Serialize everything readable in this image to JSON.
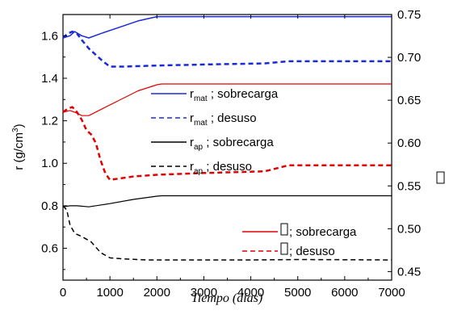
{
  "chart_data": {
    "type": "line",
    "xlabel": "Tiempo (días)",
    "ylabel_left": {
      "main": "r (g/cm",
      "sup": "3",
      "close": ")"
    },
    "ylabel_right": "",
    "xlim": [
      0,
      7000
    ],
    "ylim_left": [
      0.45,
      1.7
    ],
    "ylim_right": [
      0.44,
      0.75
    ],
    "x_ticks": [
      0,
      1000,
      2000,
      3000,
      4000,
      5000,
      6000,
      7000
    ],
    "y_ticks_left": [
      "0.6",
      "0.8",
      "1.0",
      "1.2",
      "1.4",
      "1.6"
    ],
    "y_ticks_left_values": [
      0.6,
      0.8,
      1.0,
      1.2,
      1.4,
      1.6
    ],
    "y_ticks_right": [
      "0.45",
      "0.50",
      "0.55",
      "0.60",
      "0.65",
      "0.70",
      "0.75"
    ],
    "y_ticks_right_values": [
      0.45,
      0.5,
      0.55,
      0.6,
      0.65,
      0.7,
      0.75
    ],
    "grid": false,
    "series": [
      {
        "name": "r mat ; sobrecarga",
        "axis": "left",
        "color": "#1a2bd6",
        "dash": "solid",
        "width": 1.5,
        "x": [
          0,
          150,
          250,
          400,
          550,
          800,
          1200,
          1600,
          2000,
          2100,
          3000,
          4000,
          5000,
          6000,
          7000
        ],
        "y": [
          1.59,
          1.6,
          1.62,
          1.6,
          1.59,
          1.61,
          1.64,
          1.67,
          1.69,
          1.69,
          1.69,
          1.69,
          1.69,
          1.69,
          1.69
        ]
      },
      {
        "name": "r mat ; desuso",
        "axis": "left",
        "color": "#1a2bd6",
        "dash": "dashed",
        "width": 2.5,
        "x": [
          0,
          100,
          200,
          300,
          400,
          550,
          700,
          850,
          1000,
          1300,
          2000,
          3000,
          4300,
          4800,
          6000,
          7000
        ],
        "y": [
          1.59,
          1.61,
          1.62,
          1.61,
          1.58,
          1.54,
          1.51,
          1.48,
          1.455,
          1.455,
          1.46,
          1.465,
          1.47,
          1.48,
          1.48,
          1.48
        ]
      },
      {
        "name": "r ap ; sobrecarga",
        "axis": "left",
        "color": "#000000",
        "dash": "solid",
        "width": 1.2,
        "x": [
          0,
          150,
          300,
          550,
          1000,
          1500,
          2000,
          2100,
          3000,
          4000,
          5000,
          6000,
          7000
        ],
        "y": [
          0.795,
          0.8,
          0.8,
          0.795,
          0.81,
          0.83,
          0.845,
          0.847,
          0.847,
          0.847,
          0.847,
          0.847,
          0.847
        ]
      },
      {
        "name": "r ap ; desuso",
        "axis": "left",
        "color": "#000000",
        "dash": "dashed",
        "width": 1.5,
        "x": [
          0,
          80,
          150,
          250,
          400,
          600,
          800,
          1000,
          1300,
          1800,
          2500,
          4000,
          5000,
          6000,
          7000
        ],
        "y": [
          0.8,
          0.78,
          0.71,
          0.67,
          0.655,
          0.63,
          0.58,
          0.555,
          0.55,
          0.545,
          0.545,
          0.545,
          0.547,
          0.546,
          0.545
        ]
      },
      {
        "name": "; sobrecarga",
        "axis": "right",
        "color": "#e00000",
        "dash": "solid",
        "width": 1.2,
        "x": [
          0,
          150,
          250,
          400,
          550,
          800,
          1200,
          1600,
          2000,
          2100,
          3000,
          4000,
          5000,
          6000,
          7000
        ],
        "y": [
          0.636,
          0.638,
          0.636,
          0.632,
          0.632,
          0.639,
          0.65,
          0.661,
          0.668,
          0.669,
          0.669,
          0.669,
          0.669,
          0.669,
          0.669
        ]
      },
      {
        "name": "; desuso",
        "axis": "right",
        "color": "#e00000",
        "dash": "dashed",
        "width": 2.5,
        "x": [
          0,
          100,
          200,
          300,
          400,
          500,
          600,
          700,
          800,
          900,
          1000,
          1500,
          2000,
          3000,
          4300,
          4800,
          5000,
          6000,
          7000
        ],
        "y": [
          0.636,
          0.64,
          0.642,
          0.636,
          0.627,
          0.615,
          0.61,
          0.6,
          0.58,
          0.565,
          0.557,
          0.561,
          0.563,
          0.565,
          0.567,
          0.574,
          0.574,
          0.574,
          0.574
        ]
      }
    ],
    "legend_upper": [
      {
        "main": "r",
        "sub": "mat",
        "rest": " ; sobrecarga",
        "color": "#1a2bd6",
        "dash": "solid"
      },
      {
        "main": "r",
        "sub": "mat",
        "rest": " ; desuso",
        "color": "#1a2bd6",
        "dash": "dashed"
      },
      {
        "main": "r",
        "sub": "ap",
        "rest": " ; sobrecarga",
        "color": "#000000",
        "dash": "solid"
      },
      {
        "main": "r",
        "sub": "ap",
        "rest": " ; desuso",
        "color": "#000000",
        "dash": "dashed"
      }
    ],
    "legend_lower": [
      {
        "main": "",
        "sub": "",
        "rest": "; sobrecarga",
        "color": "#e00000",
        "dash": "solid"
      },
      {
        "main": "",
        "sub": "",
        "rest": "; desuso",
        "color": "#e00000",
        "dash": "dashed"
      }
    ]
  }
}
